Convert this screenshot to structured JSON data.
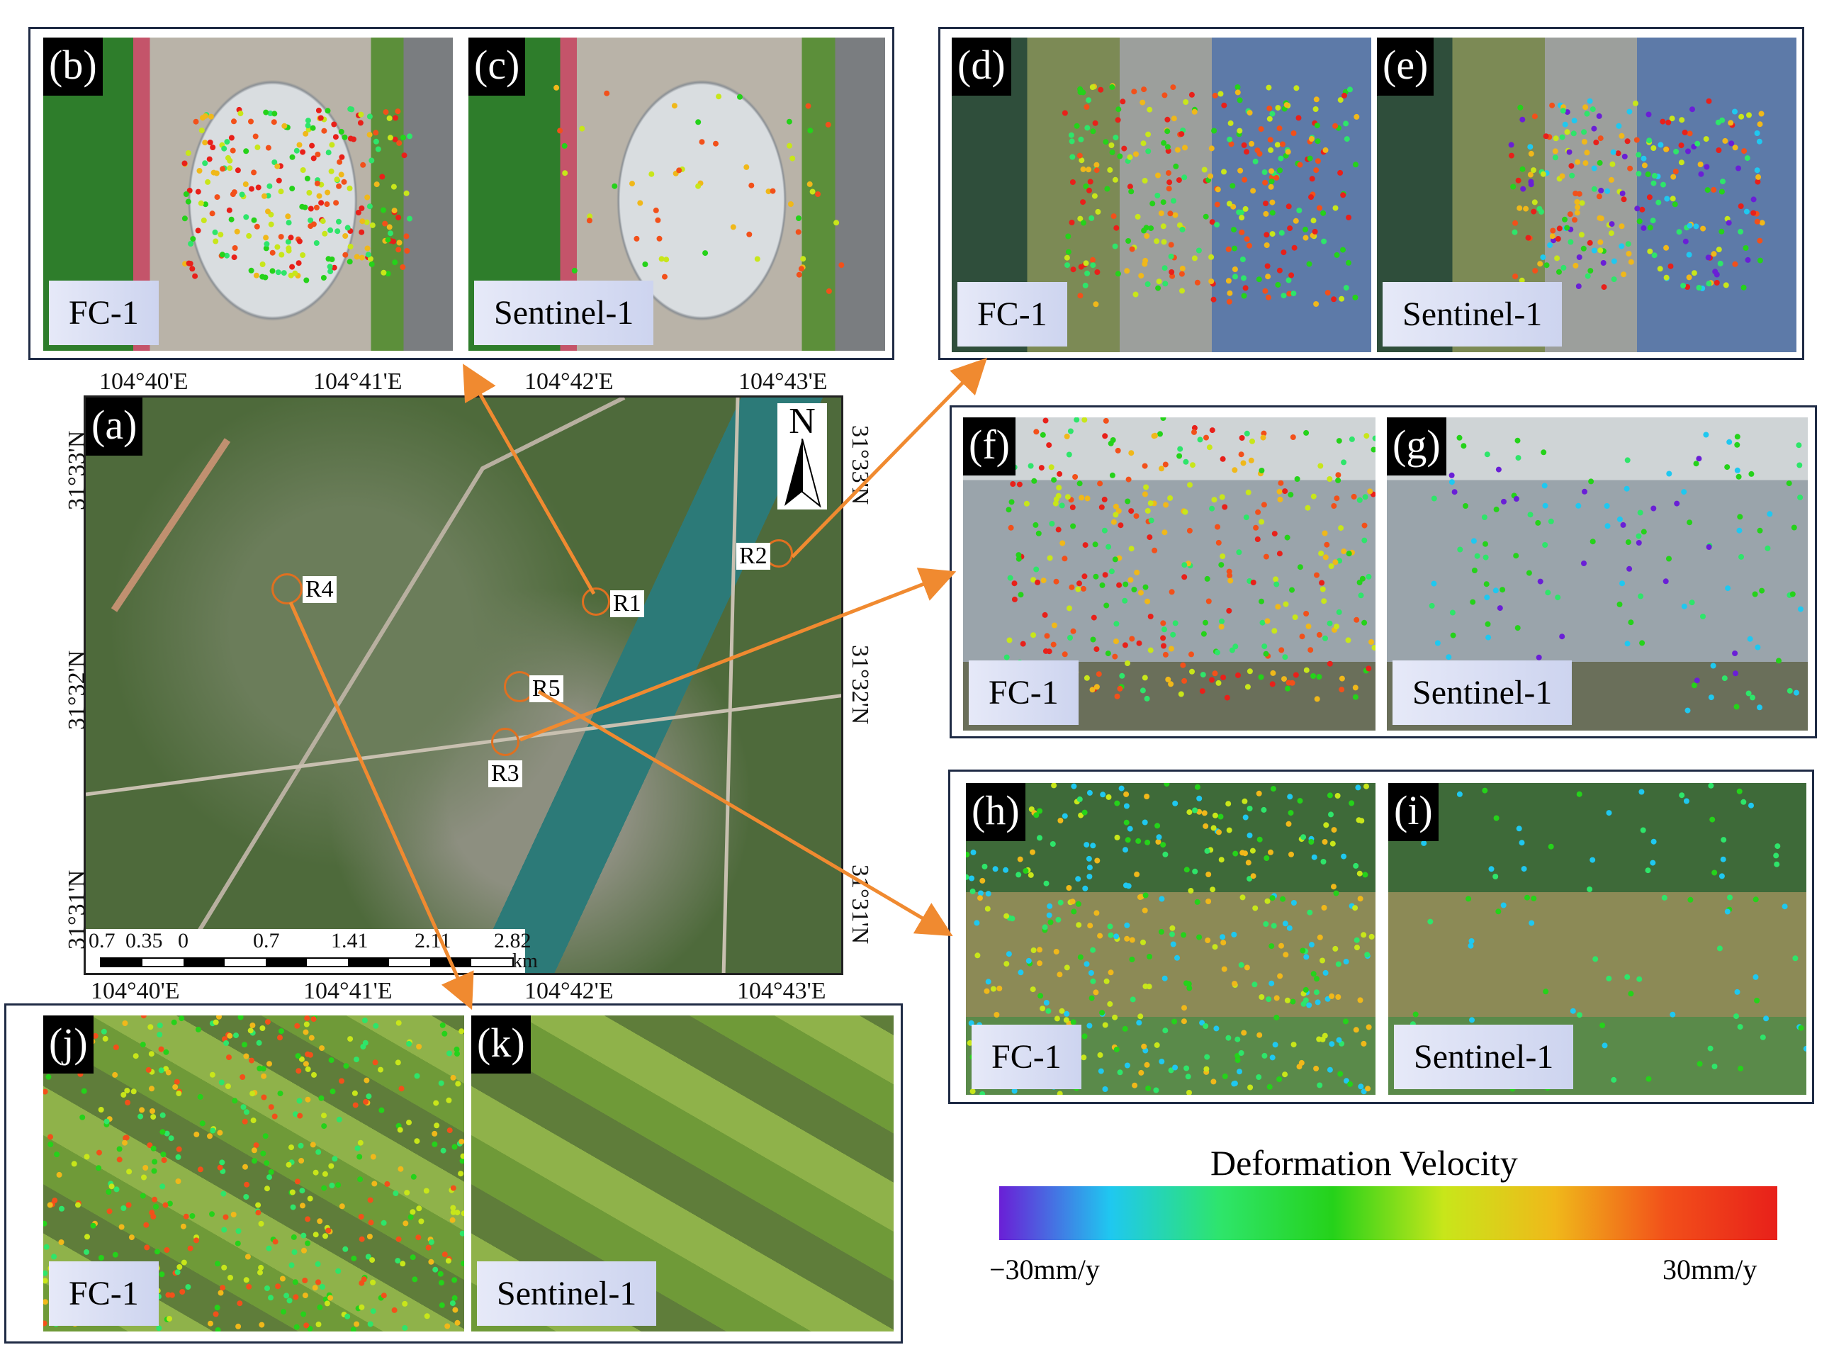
{
  "panels": {
    "a": {
      "label": "(a)"
    },
    "b": {
      "label": "(b)",
      "sensor": "FC-1"
    },
    "c": {
      "label": "(c)",
      "sensor": "Sentinel-1"
    },
    "d": {
      "label": "(d)",
      "sensor": "FC-1"
    },
    "e": {
      "label": "(e)",
      "sensor": "Sentinel-1"
    },
    "f": {
      "label": "(f)",
      "sensor": "FC-1"
    },
    "g": {
      "label": "(g)",
      "sensor": "Sentinel-1"
    },
    "h": {
      "label": "(h)",
      "sensor": "FC-1"
    },
    "i": {
      "label": "(i)",
      "sensor": "Sentinel-1"
    },
    "j": {
      "label": "(j)",
      "sensor": "FC-1"
    },
    "k": {
      "label": "(k)",
      "sensor": "Sentinel-1"
    }
  },
  "map": {
    "lon_ticks": [
      "104°40'E",
      "104°41'E",
      "104°42'E",
      "104°43'E"
    ],
    "lat_ticks": [
      "31°33'N",
      "31°32'N",
      "31°31'N"
    ],
    "north": "N",
    "scale_values": [
      "0.7",
      "0.35",
      "0",
      "0.7",
      "1.41",
      "2.11",
      "2.82"
    ],
    "scale_unit": "km",
    "regions": [
      "R1",
      "R2",
      "R3",
      "R4",
      "R5"
    ]
  },
  "legend": {
    "title": "Deformation Velocity",
    "min_label": "−30mm/y",
    "max_label": "30mm/y",
    "colors": [
      "#6a1fd6",
      "#1fc8f0",
      "#2ee56a",
      "#25d21a",
      "#c8e61a",
      "#f0b81a",
      "#f2501a",
      "#e8201a"
    ]
  },
  "colors": {
    "frame": "#1f2b45",
    "arrow": "#f08a30"
  }
}
